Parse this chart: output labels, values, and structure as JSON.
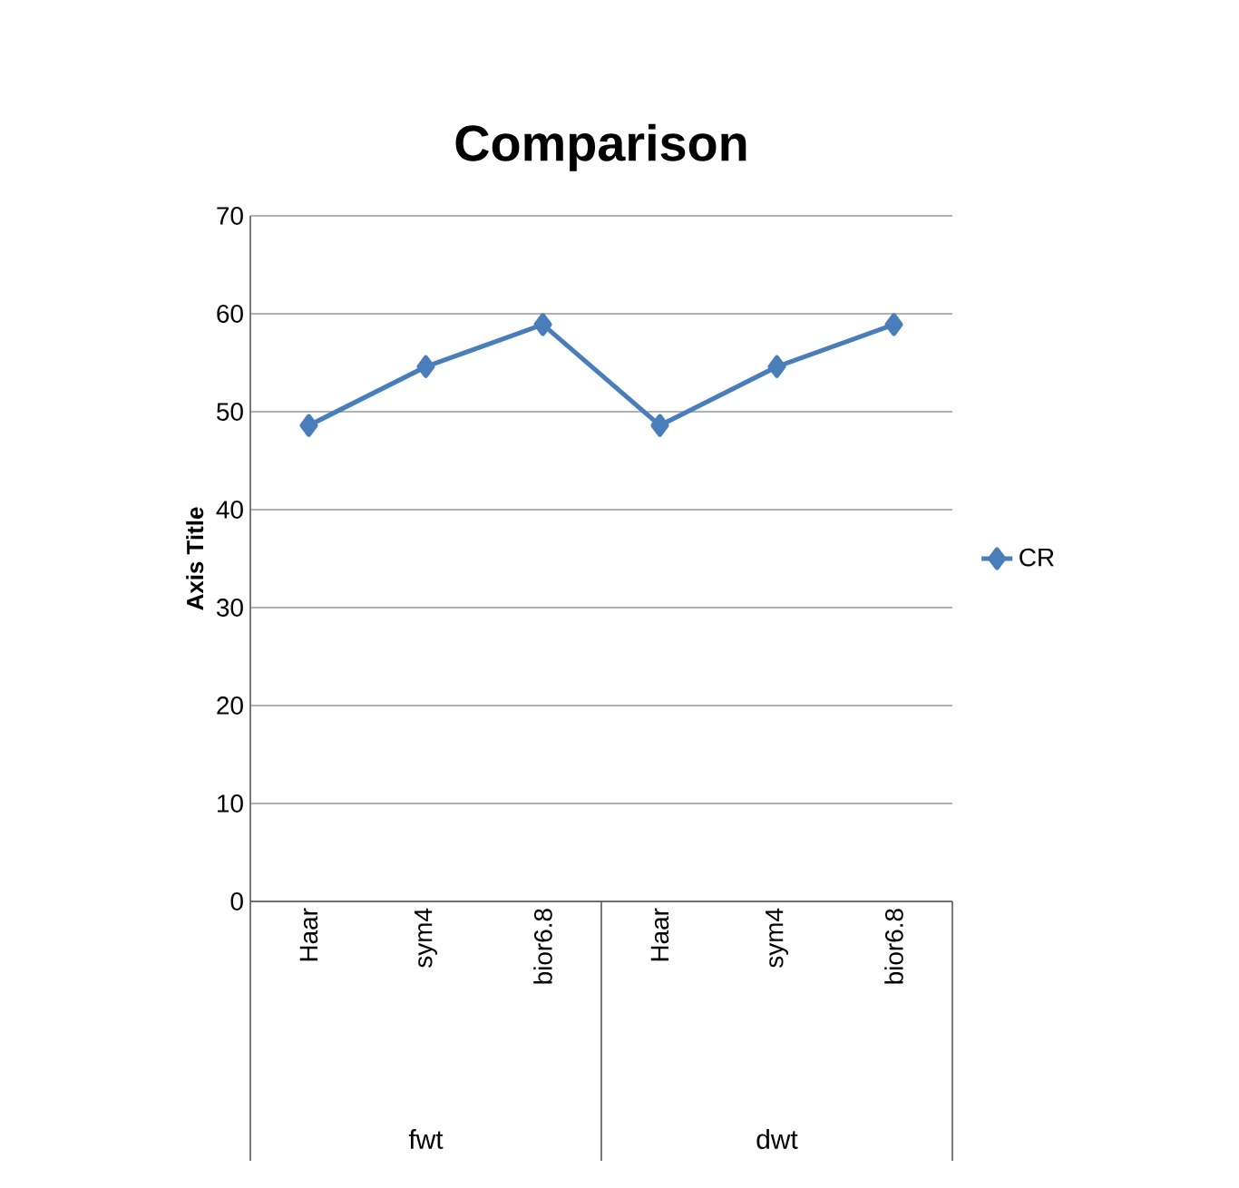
{
  "chart_data": {
    "type": "line",
    "title": "Comparison",
    "ylabel": "Axis Title",
    "categories": [
      "Haar",
      "sym4",
      "bior6.8",
      "Haar",
      "sym4",
      "bior6.8"
    ],
    "series": [
      {
        "name": "CR",
        "color": "#4a7ebb",
        "values": [
          48.6,
          54.6,
          58.9,
          48.6,
          54.6,
          58.9
        ]
      }
    ],
    "ylim": [
      0,
      70
    ],
    "yticks": [
      0,
      10,
      20,
      30,
      40,
      50,
      60,
      70
    ],
    "grid": "y",
    "legend": "right",
    "marker": "diamond",
    "line_style": "solid",
    "annotations": [
      "fwt",
      "dwt"
    ]
  }
}
